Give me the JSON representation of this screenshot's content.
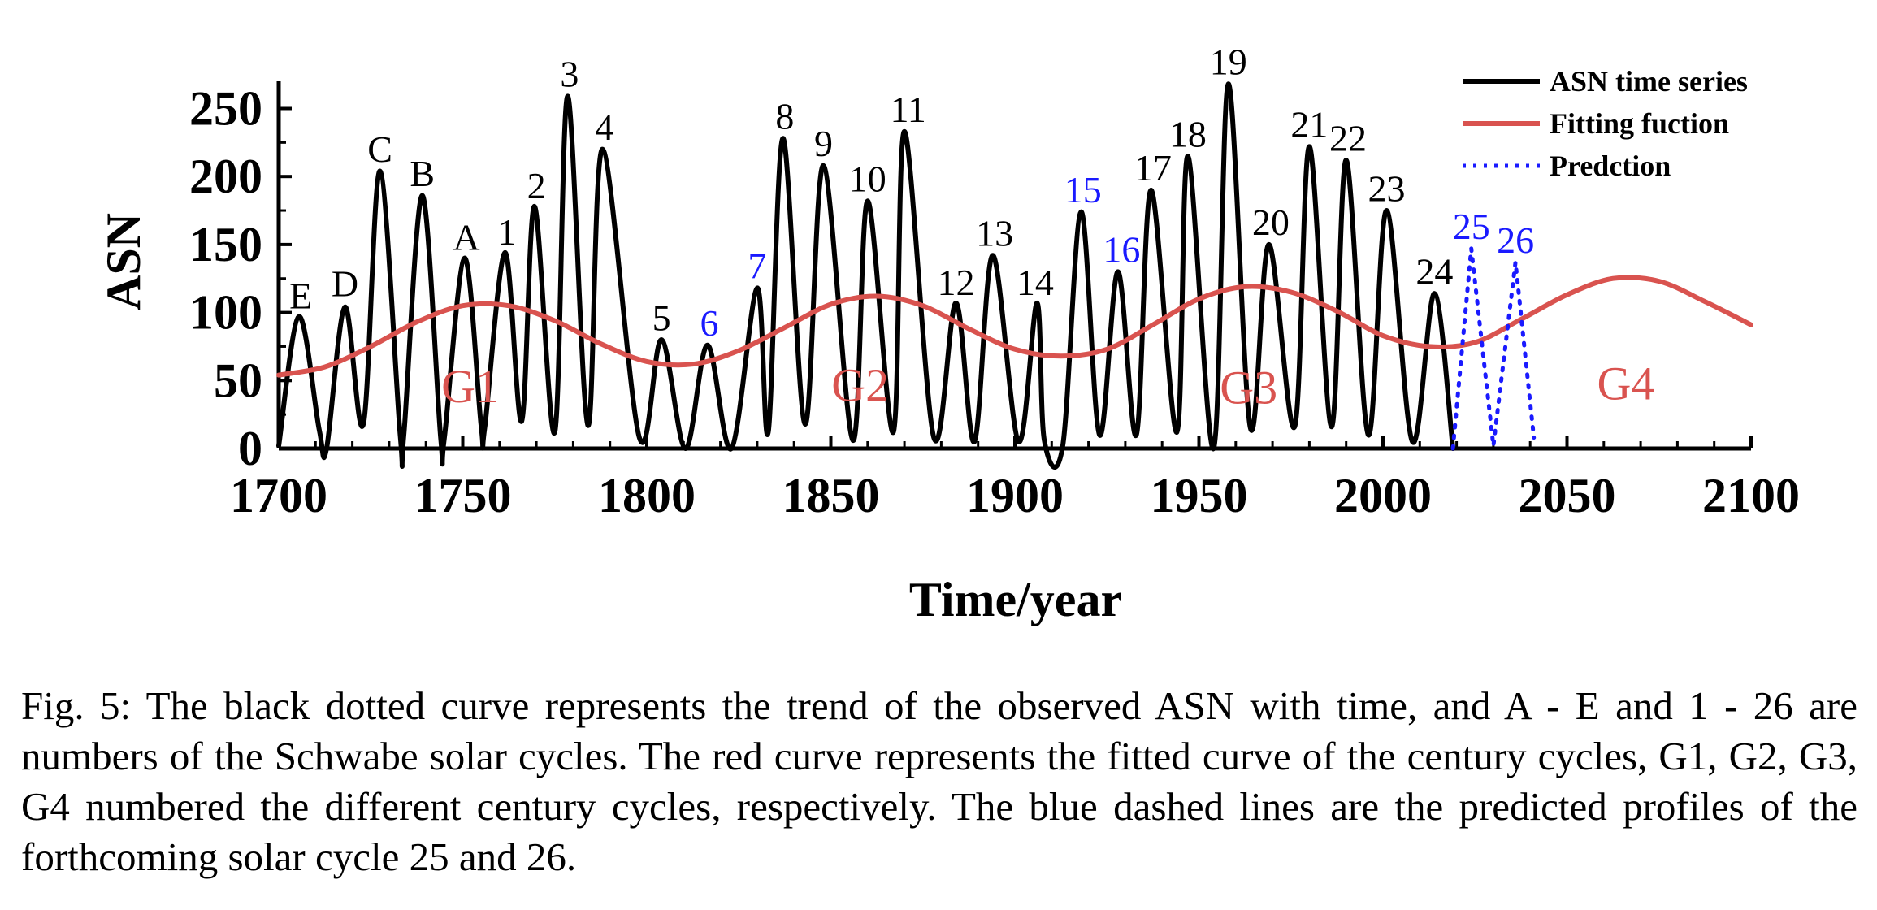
{
  "chart_data": {
    "type": "line",
    "xlabel": "Time/year",
    "ylabel": "ASN",
    "xlim": [
      1700,
      2100
    ],
    "ylim": [
      0,
      270
    ],
    "x_ticks": [
      1700,
      1750,
      1800,
      1850,
      1900,
      1950,
      2000,
      2050,
      2100
    ],
    "y_ticks": [
      0,
      50,
      100,
      150,
      200,
      250
    ],
    "grid": false,
    "legend_position": "top-right",
    "colors": {
      "observed": "#000000",
      "fit": "#d9534f",
      "prediction": "#1a1aff",
      "cycle_blue": "#1a1aff",
      "cycle_black": "#000000",
      "century": "#d9534f"
    },
    "series": [
      {
        "name": "ASN time series",
        "style": "solid",
        "x": [
          1700,
          1705.5,
          1711,
          1713,
          1718,
          1723,
          1727.5,
          1733,
          1734,
          1739,
          1744,
          1745,
          1750.5,
          1755,
          1756,
          1761.5,
          1766,
          1769.5,
          1775,
          1778.5,
          1784,
          1788,
          1798,
          1804,
          1810.5,
          1816.5,
          1823,
          1830,
          1833,
          1837,
          1843,
          1848,
          1856,
          1860,
          1867,
          1870,
          1878,
          1884,
          1889,
          1894,
          1901,
          1906,
          1908,
          1913,
          1918,
          1923,
          1928,
          1933,
          1937,
          1944,
          1947,
          1954,
          1958,
          1964,
          1969,
          1976,
          1980,
          1986,
          1990,
          1996,
          2001,
          2008,
          2014,
          2019
        ],
        "y": [
          2,
          97,
          14,
          0,
          104,
          18,
          204,
          10,
          10,
          186,
          8,
          8,
          140,
          16,
          16,
          144,
          20,
          178,
          12,
          259,
          17,
          220,
          8,
          80,
          0,
          76,
          0,
          118,
          12,
          228,
          18,
          208,
          6,
          182,
          12,
          233,
          8,
          107,
          5,
          142,
          5,
          107,
          6,
          2,
          174,
          10,
          130,
          10,
          190,
          12,
          215,
          0,
          268,
          15,
          150,
          16,
          222,
          16,
          212,
          10,
          175,
          5,
          114,
          0
        ]
      },
      {
        "name": "Fitting fuction",
        "style": "solid",
        "x": [
          1700,
          1712.5,
          1725,
          1737.5,
          1750,
          1762.5,
          1775,
          1787.5,
          1800,
          1812.5,
          1825,
          1837.5,
          1850,
          1862.5,
          1875,
          1887.5,
          1900,
          1912.5,
          1925,
          1937.5,
          1950,
          1962.5,
          1975,
          1987.5,
          2000,
          2012.5,
          2025,
          2037.5,
          2050,
          2062.5,
          2075,
          2087.5,
          2100
        ],
        "y": [
          54,
          60,
          75,
          93,
          105,
          105,
          94,
          77,
          64,
          62,
          72,
          89,
          106,
          112,
          105,
          88,
          73,
          68,
          73,
          91,
          110,
          119,
          115,
          101,
          83,
          75,
          78,
          95,
          113,
          125,
          123,
          108,
          91
        ]
      },
      {
        "name": "Predction",
        "style": "dotted",
        "x": [
          2019,
          2024,
          2030,
          2036,
          2041
        ],
        "y": [
          0,
          147,
          2,
          137,
          8
        ]
      }
    ],
    "annotations": [
      {
        "text": "E",
        "x": 1706,
        "y": 103,
        "color": "black"
      },
      {
        "text": "D",
        "x": 1718,
        "y": 112,
        "color": "black"
      },
      {
        "text": "C",
        "x": 1727.5,
        "y": 211,
        "color": "black"
      },
      {
        "text": "B",
        "x": 1739,
        "y": 193,
        "color": "black"
      },
      {
        "text": "A",
        "x": 1751,
        "y": 146,
        "color": "black"
      },
      {
        "text": "1",
        "x": 1762,
        "y": 150,
        "color": "black"
      },
      {
        "text": "2",
        "x": 1770,
        "y": 184,
        "color": "black"
      },
      {
        "text": "3",
        "x": 1779,
        "y": 266,
        "color": "black"
      },
      {
        "text": "4",
        "x": 1788.5,
        "y": 227,
        "color": "black"
      },
      {
        "text": "5",
        "x": 1804,
        "y": 87,
        "color": "black"
      },
      {
        "text": "6",
        "x": 1817,
        "y": 83,
        "color": "blue"
      },
      {
        "text": "7",
        "x": 1830,
        "y": 125,
        "color": "blue"
      },
      {
        "text": "8",
        "x": 1837.5,
        "y": 235,
        "color": "black"
      },
      {
        "text": "9",
        "x": 1848,
        "y": 215,
        "color": "black"
      },
      {
        "text": "10",
        "x": 1860,
        "y": 189,
        "color": "black"
      },
      {
        "text": "11",
        "x": 1871,
        "y": 240,
        "color": "black"
      },
      {
        "text": "12",
        "x": 1884,
        "y": 113,
        "color": "black"
      },
      {
        "text": "13",
        "x": 1894.5,
        "y": 149,
        "color": "black"
      },
      {
        "text": "14",
        "x": 1905.5,
        "y": 113,
        "color": "black"
      },
      {
        "text": "15",
        "x": 1918.5,
        "y": 181,
        "color": "blue"
      },
      {
        "text": "16",
        "x": 1929,
        "y": 137,
        "color": "blue"
      },
      {
        "text": "17",
        "x": 1937.5,
        "y": 197,
        "color": "black"
      },
      {
        "text": "18",
        "x": 1947,
        "y": 222,
        "color": "black"
      },
      {
        "text": "19",
        "x": 1958,
        "y": 275,
        "color": "black"
      },
      {
        "text": "20",
        "x": 1969.5,
        "y": 157,
        "color": "black"
      },
      {
        "text": "21",
        "x": 1980,
        "y": 229,
        "color": "black"
      },
      {
        "text": "22",
        "x": 1990.5,
        "y": 219,
        "color": "black"
      },
      {
        "text": "23",
        "x": 2001,
        "y": 182,
        "color": "black"
      },
      {
        "text": "24",
        "x": 2014,
        "y": 121,
        "color": "black"
      },
      {
        "text": "25",
        "x": 2024,
        "y": 154,
        "color": "blue"
      },
      {
        "text": "26",
        "x": 2036,
        "y": 144,
        "color": "blue"
      }
    ],
    "century_labels": [
      {
        "text": "G1",
        "x": 1752,
        "y": 46
      },
      {
        "text": "G2",
        "x": 1858,
        "y": 47
      },
      {
        "text": "G3",
        "x": 1963.5,
        "y": 45
      },
      {
        "text": "G4",
        "x": 2066,
        "y": 48
      }
    ]
  },
  "caption": "Fig. 5: The black dotted curve represents the trend of the observed ASN with time, and A - E and 1 - 26 are numbers of the Schwabe solar cycles. The red curve represents the fitted curve of the century cycles, G1, G2, G3, G4 numbered the different century cycles, respectively. The blue dashed lines are the predicted profiles of the forthcoming solar cycle 25 and 26."
}
